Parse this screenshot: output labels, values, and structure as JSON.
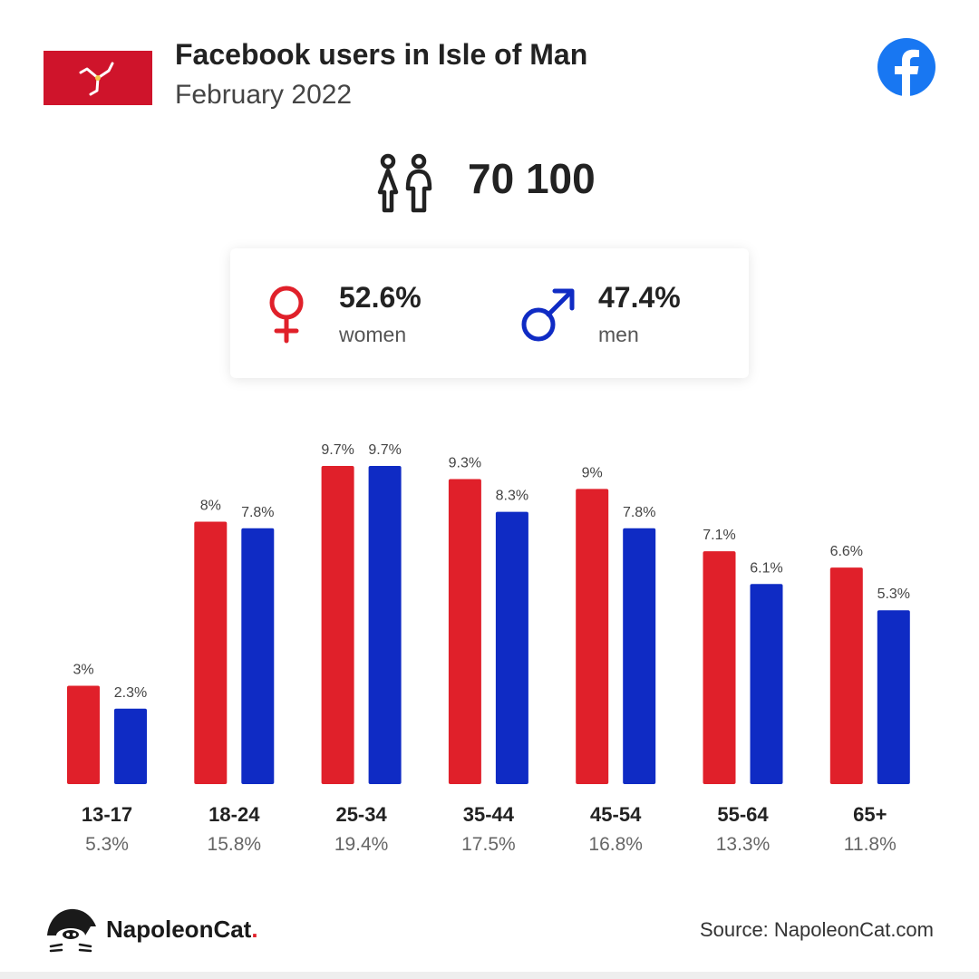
{
  "header": {
    "title": "Facebook users in Isle of Man",
    "subtitle": "February 2022",
    "flag_icon": "isle-of-man-flag-icon",
    "brand_icon": "facebook-logo-icon"
  },
  "summary": {
    "total_users": "70 100",
    "women_pct": "52.6%",
    "women_label": "women",
    "men_pct": "47.4%",
    "men_label": "men"
  },
  "colors": {
    "women": "#e0202a",
    "men": "#0f2bc4",
    "facebook": "#1877f2",
    "flag": "#cf142b"
  },
  "chart_data": {
    "type": "bar",
    "categories": [
      "13-17",
      "18-24",
      "25-34",
      "35-44",
      "45-54",
      "55-64",
      "65+"
    ],
    "category_totals": [
      "5.3%",
      "15.8%",
      "19.4%",
      "17.5%",
      "16.8%",
      "13.3%",
      "11.8%"
    ],
    "series": [
      {
        "values": [
          3,
          8,
          9.7,
          9.3,
          9,
          7.1,
          6.6
        ],
        "labels": [
          "3%",
          "8%",
          "9.7%",
          "9.3%",
          "9%",
          "7.1%",
          "6.6%"
        ],
        "color": "#e0202a"
      },
      {
        "values": [
          2.3,
          7.8,
          9.7,
          8.3,
          7.8,
          6.1,
          5.3
        ],
        "labels": [
          "2.3%",
          "7.8%",
          "9.7%",
          "8.3%",
          "7.8%",
          "6.1%",
          "5.3%"
        ],
        "color": "#0f2bc4"
      }
    ],
    "ylim": [
      0,
      9.7
    ],
    "grid": false
  },
  "footer": {
    "brand_name": "NapoleonCat",
    "brand_dot": ".",
    "source": "Source: NapoleonCat.com"
  }
}
